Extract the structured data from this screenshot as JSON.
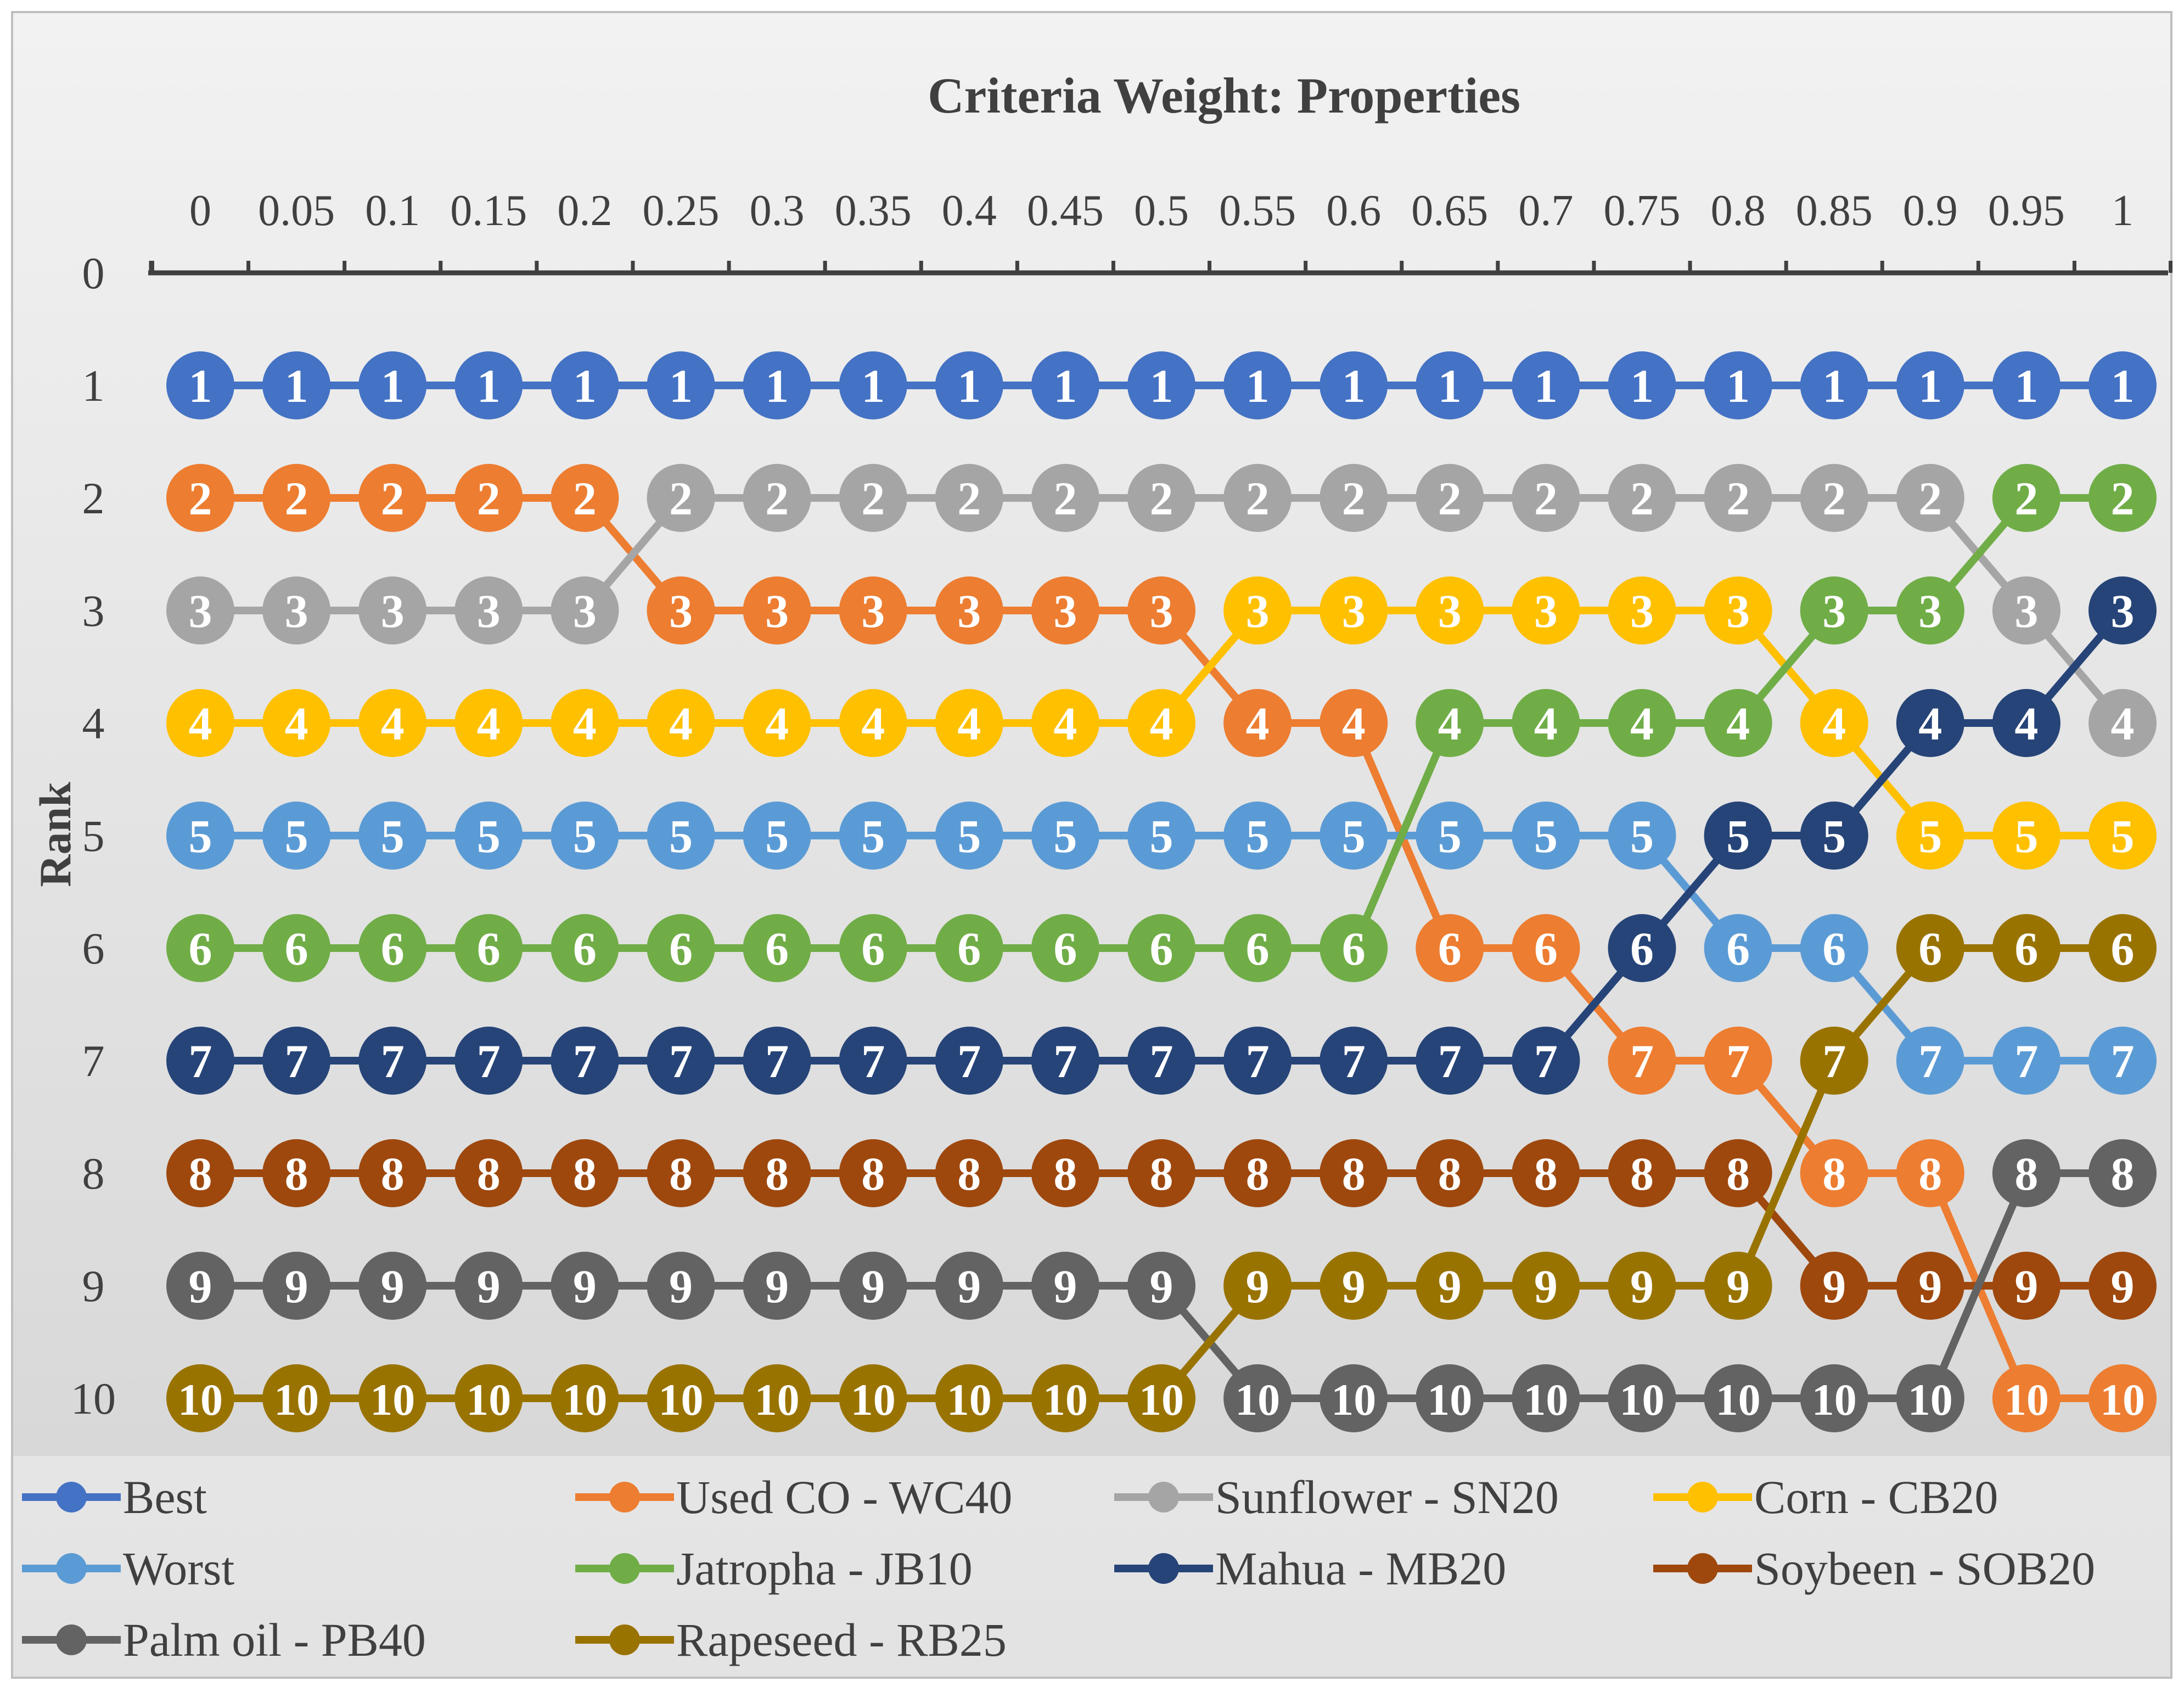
{
  "chart_data": {
    "type": "line",
    "title": "Criteria Weight: Properties",
    "ylabel": "Rank",
    "xlabel": "",
    "x": [
      0,
      0.05,
      0.1,
      0.15,
      0.2,
      0.25,
      0.3,
      0.35,
      0.4,
      0.45,
      0.5,
      0.55,
      0.6,
      0.65,
      0.7,
      0.75,
      0.8,
      0.85,
      0.9,
      0.95,
      1
    ],
    "x_tick_labels": [
      "0",
      "0.05",
      "0.1",
      "0.15",
      "0.2",
      "0.25",
      "0.3",
      "0.35",
      "0.4",
      "0.45",
      "0.5",
      "0.55",
      "0.6",
      "0.65",
      "0.7",
      "0.75",
      "0.8",
      "0.85",
      "0.9",
      "0.95",
      "1"
    ],
    "y_tick_labels": [
      "0",
      "1",
      "2",
      "3",
      "4",
      "5",
      "6",
      "7",
      "8",
      "9",
      "10"
    ],
    "ylim": [
      0,
      10
    ],
    "y_inverted": true,
    "x_axis_position": "top",
    "legend_position": "bottom",
    "data_labels": true,
    "series": [
      {
        "name": "Best",
        "color": "#4472C4",
        "values": [
          1,
          1,
          1,
          1,
          1,
          1,
          1,
          1,
          1,
          1,
          1,
          1,
          1,
          1,
          1,
          1,
          1,
          1,
          1,
          1,
          1
        ]
      },
      {
        "name": "Used CO - WC40",
        "color": "#ED7D31",
        "values": [
          2,
          2,
          2,
          2,
          2,
          3,
          3,
          3,
          3,
          3,
          3,
          4,
          4,
          6,
          6,
          7,
          7,
          8,
          8,
          10,
          10
        ]
      },
      {
        "name": "Sunflower - SN20",
        "color": "#A5A5A5",
        "values": [
          3,
          3,
          3,
          3,
          3,
          2,
          2,
          2,
          2,
          2,
          2,
          2,
          2,
          2,
          2,
          2,
          2,
          2,
          2,
          3,
          4
        ]
      },
      {
        "name": "Corn - CB20",
        "color": "#FFC000",
        "values": [
          4,
          4,
          4,
          4,
          4,
          4,
          4,
          4,
          4,
          4,
          4,
          3,
          3,
          3,
          3,
          3,
          3,
          4,
          5,
          5,
          5
        ]
      },
      {
        "name": "Worst",
        "color": "#5B9BD5",
        "values": [
          5,
          5,
          5,
          5,
          5,
          5,
          5,
          5,
          5,
          5,
          5,
          5,
          5,
          5,
          5,
          5,
          6,
          6,
          7,
          7,
          7
        ]
      },
      {
        "name": "Jatropha - JB10",
        "color": "#70AD47",
        "values": [
          6,
          6,
          6,
          6,
          6,
          6,
          6,
          6,
          6,
          6,
          6,
          6,
          6,
          4,
          4,
          4,
          4,
          3,
          3,
          2,
          2
        ]
      },
      {
        "name": "Mahua - MB20",
        "color": "#264478",
        "values": [
          7,
          7,
          7,
          7,
          7,
          7,
          7,
          7,
          7,
          7,
          7,
          7,
          7,
          7,
          7,
          6,
          5,
          5,
          4,
          4,
          3
        ]
      },
      {
        "name": "Soybeen - SOB20",
        "color": "#9E480E",
        "values": [
          8,
          8,
          8,
          8,
          8,
          8,
          8,
          8,
          8,
          8,
          8,
          8,
          8,
          8,
          8,
          8,
          8,
          9,
          9,
          9,
          9
        ]
      },
      {
        "name": "Palm oil - PB40",
        "color": "#636363",
        "values": [
          9,
          9,
          9,
          9,
          9,
          9,
          9,
          9,
          9,
          9,
          9,
          10,
          10,
          10,
          10,
          10,
          10,
          10,
          10,
          8,
          8
        ]
      },
      {
        "name": "Rapeseed - RB25",
        "color": "#997300",
        "values": [
          10,
          10,
          10,
          10,
          10,
          10,
          10,
          10,
          10,
          10,
          10,
          9,
          9,
          9,
          9,
          9,
          9,
          7,
          6,
          6,
          6
        ]
      }
    ]
  }
}
